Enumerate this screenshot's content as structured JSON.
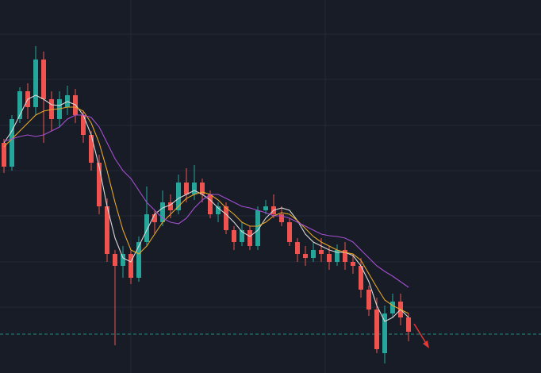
{
  "chart_data": {
    "type": "candlestick",
    "categories": [
      null,
      null,
      null,
      null,
      null,
      null,
      null,
      null,
      null,
      null,
      null,
      null,
      null,
      null,
      null,
      null,
      null,
      null,
      null,
      null,
      null,
      null,
      null,
      null,
      null,
      null,
      null,
      null,
      null,
      null,
      null,
      null,
      null,
      null,
      null,
      null,
      null,
      null,
      null,
      null,
      null,
      null,
      null,
      null,
      null,
      null,
      null,
      null,
      null,
      null,
      null,
      null
    ],
    "open": [
      290,
      260,
      320,
      355,
      335,
      395,
      345,
      320,
      335,
      350,
      325,
      300,
      265,
      210,
      150,
      135,
      150,
      120,
      165,
      200,
      190,
      215,
      205,
      240,
      225,
      240,
      225,
      200,
      210,
      180,
      165,
      180,
      160,
      205,
      210,
      200,
      190,
      165,
      150,
      145,
      155,
      150,
      140,
      155,
      140,
      135,
      105,
      80,
      25,
      75,
      90,
      70
    ],
    "high": [
      295,
      325,
      360,
      365,
      412,
      405,
      355,
      355,
      362,
      358,
      330,
      305,
      275,
      220,
      155,
      160,
      155,
      172,
      235,
      205,
      230,
      225,
      250,
      258,
      262,
      245,
      230,
      215,
      215,
      185,
      190,
      185,
      210,
      218,
      225,
      210,
      195,
      170,
      160,
      165,
      170,
      160,
      162,
      165,
      150,
      145,
      110,
      95,
      85,
      100,
      100,
      75
    ],
    "low": [
      252,
      255,
      315,
      320,
      325,
      290,
      305,
      310,
      325,
      315,
      290,
      255,
      200,
      140,
      35,
      120,
      112,
      115,
      160,
      175,
      185,
      195,
      200,
      215,
      218,
      215,
      195,
      190,
      175,
      155,
      160,
      155,
      155,
      200,
      195,
      185,
      160,
      140,
      135,
      140,
      140,
      130,
      135,
      130,
      125,
      95,
      72,
      25,
      12,
      70,
      60,
      40
    ],
    "close": [
      260,
      320,
      355,
      335,
      395,
      345,
      320,
      345,
      350,
      325,
      300,
      265,
      210,
      150,
      135,
      150,
      120,
      165,
      200,
      190,
      215,
      205,
      240,
      225,
      240,
      225,
      200,
      210,
      180,
      165,
      180,
      160,
      205,
      210,
      200,
      190,
      165,
      150,
      145,
      155,
      150,
      140,
      155,
      140,
      135,
      105,
      80,
      30,
      75,
      90,
      70,
      52
    ],
    "up_color": "#26a69a",
    "down_color": "#ef5350",
    "lines": [
      {
        "color": "#d9d9d9",
        "values": [
          290,
          305,
          325,
          345,
          350,
          345,
          338,
          337,
          342,
          338,
          325,
          300,
          260,
          210,
          170,
          145,
          140,
          160,
          180,
          200,
          208,
          212,
          220,
          225,
          230,
          225,
          218,
          208,
          200,
          190,
          178,
          172,
          180,
          195,
          205,
          208,
          205,
          192,
          175,
          165,
          160,
          155,
          152,
          152,
          148,
          135,
          115,
          85,
          65,
          70,
          80,
          70
        ]
      },
      {
        "color": "#e6a827",
        "values": [
          285,
          295,
          305,
          315,
          325,
          330,
          332,
          333,
          335,
          335,
          330,
          315,
          290,
          255,
          215,
          180,
          155,
          150,
          160,
          175,
          190,
          200,
          210,
          220,
          225,
          228,
          225,
          218,
          208,
          200,
          190,
          185,
          185,
          190,
          198,
          202,
          200,
          192,
          182,
          172,
          165,
          160,
          155,
          152,
          150,
          142,
          125,
          108,
          92,
          85,
          80,
          75
        ]
      },
      {
        "color": "#a64fd1",
        "values": [
          292,
          295,
          298,
          300,
          298,
          300,
          305,
          310,
          320,
          325,
          325,
          322,
          310,
          290,
          270,
          255,
          245,
          230,
          215,
          205,
          195,
          190,
          188,
          195,
          208,
          218,
          225,
          225,
          220,
          215,
          210,
          208,
          205,
          202,
          198,
          198,
          195,
          190,
          185,
          180,
          175,
          173,
          172,
          170,
          165,
          155,
          145,
          135,
          128,
          122,
          115,
          108
        ]
      }
    ],
    "price_line": 49,
    "price_line_color": "#26a69a",
    "ylim": [
      0,
      470
    ]
  }
}
